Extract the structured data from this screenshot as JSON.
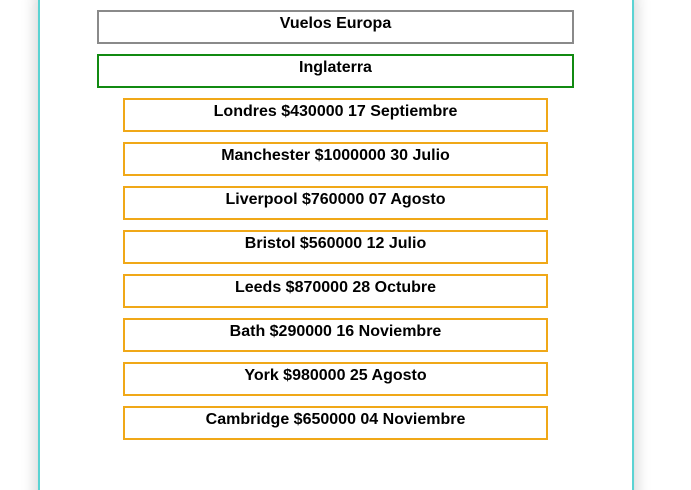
{
  "header": {
    "title": "Vuelos Europa"
  },
  "country": {
    "name": "Inglaterra"
  },
  "colors": {
    "card_border": "#5bd3d3",
    "title_border": "#8a8a8a",
    "country_border": "#118a11",
    "flight_border": "#f0a818"
  },
  "flights": [
    {
      "label": "Londres $430000 17 Septiembre"
    },
    {
      "label": "Manchester $1000000 30 Julio"
    },
    {
      "label": "Liverpool $760000 07 Agosto"
    },
    {
      "label": "Bristol $560000 12 Julio"
    },
    {
      "label": "Leeds $870000 28 Octubre"
    },
    {
      "label": "Bath $290000 16 Noviembre"
    },
    {
      "label": "York $980000 25 Agosto"
    },
    {
      "label": "Cambridge $650000 04 Noviembre"
    }
  ]
}
